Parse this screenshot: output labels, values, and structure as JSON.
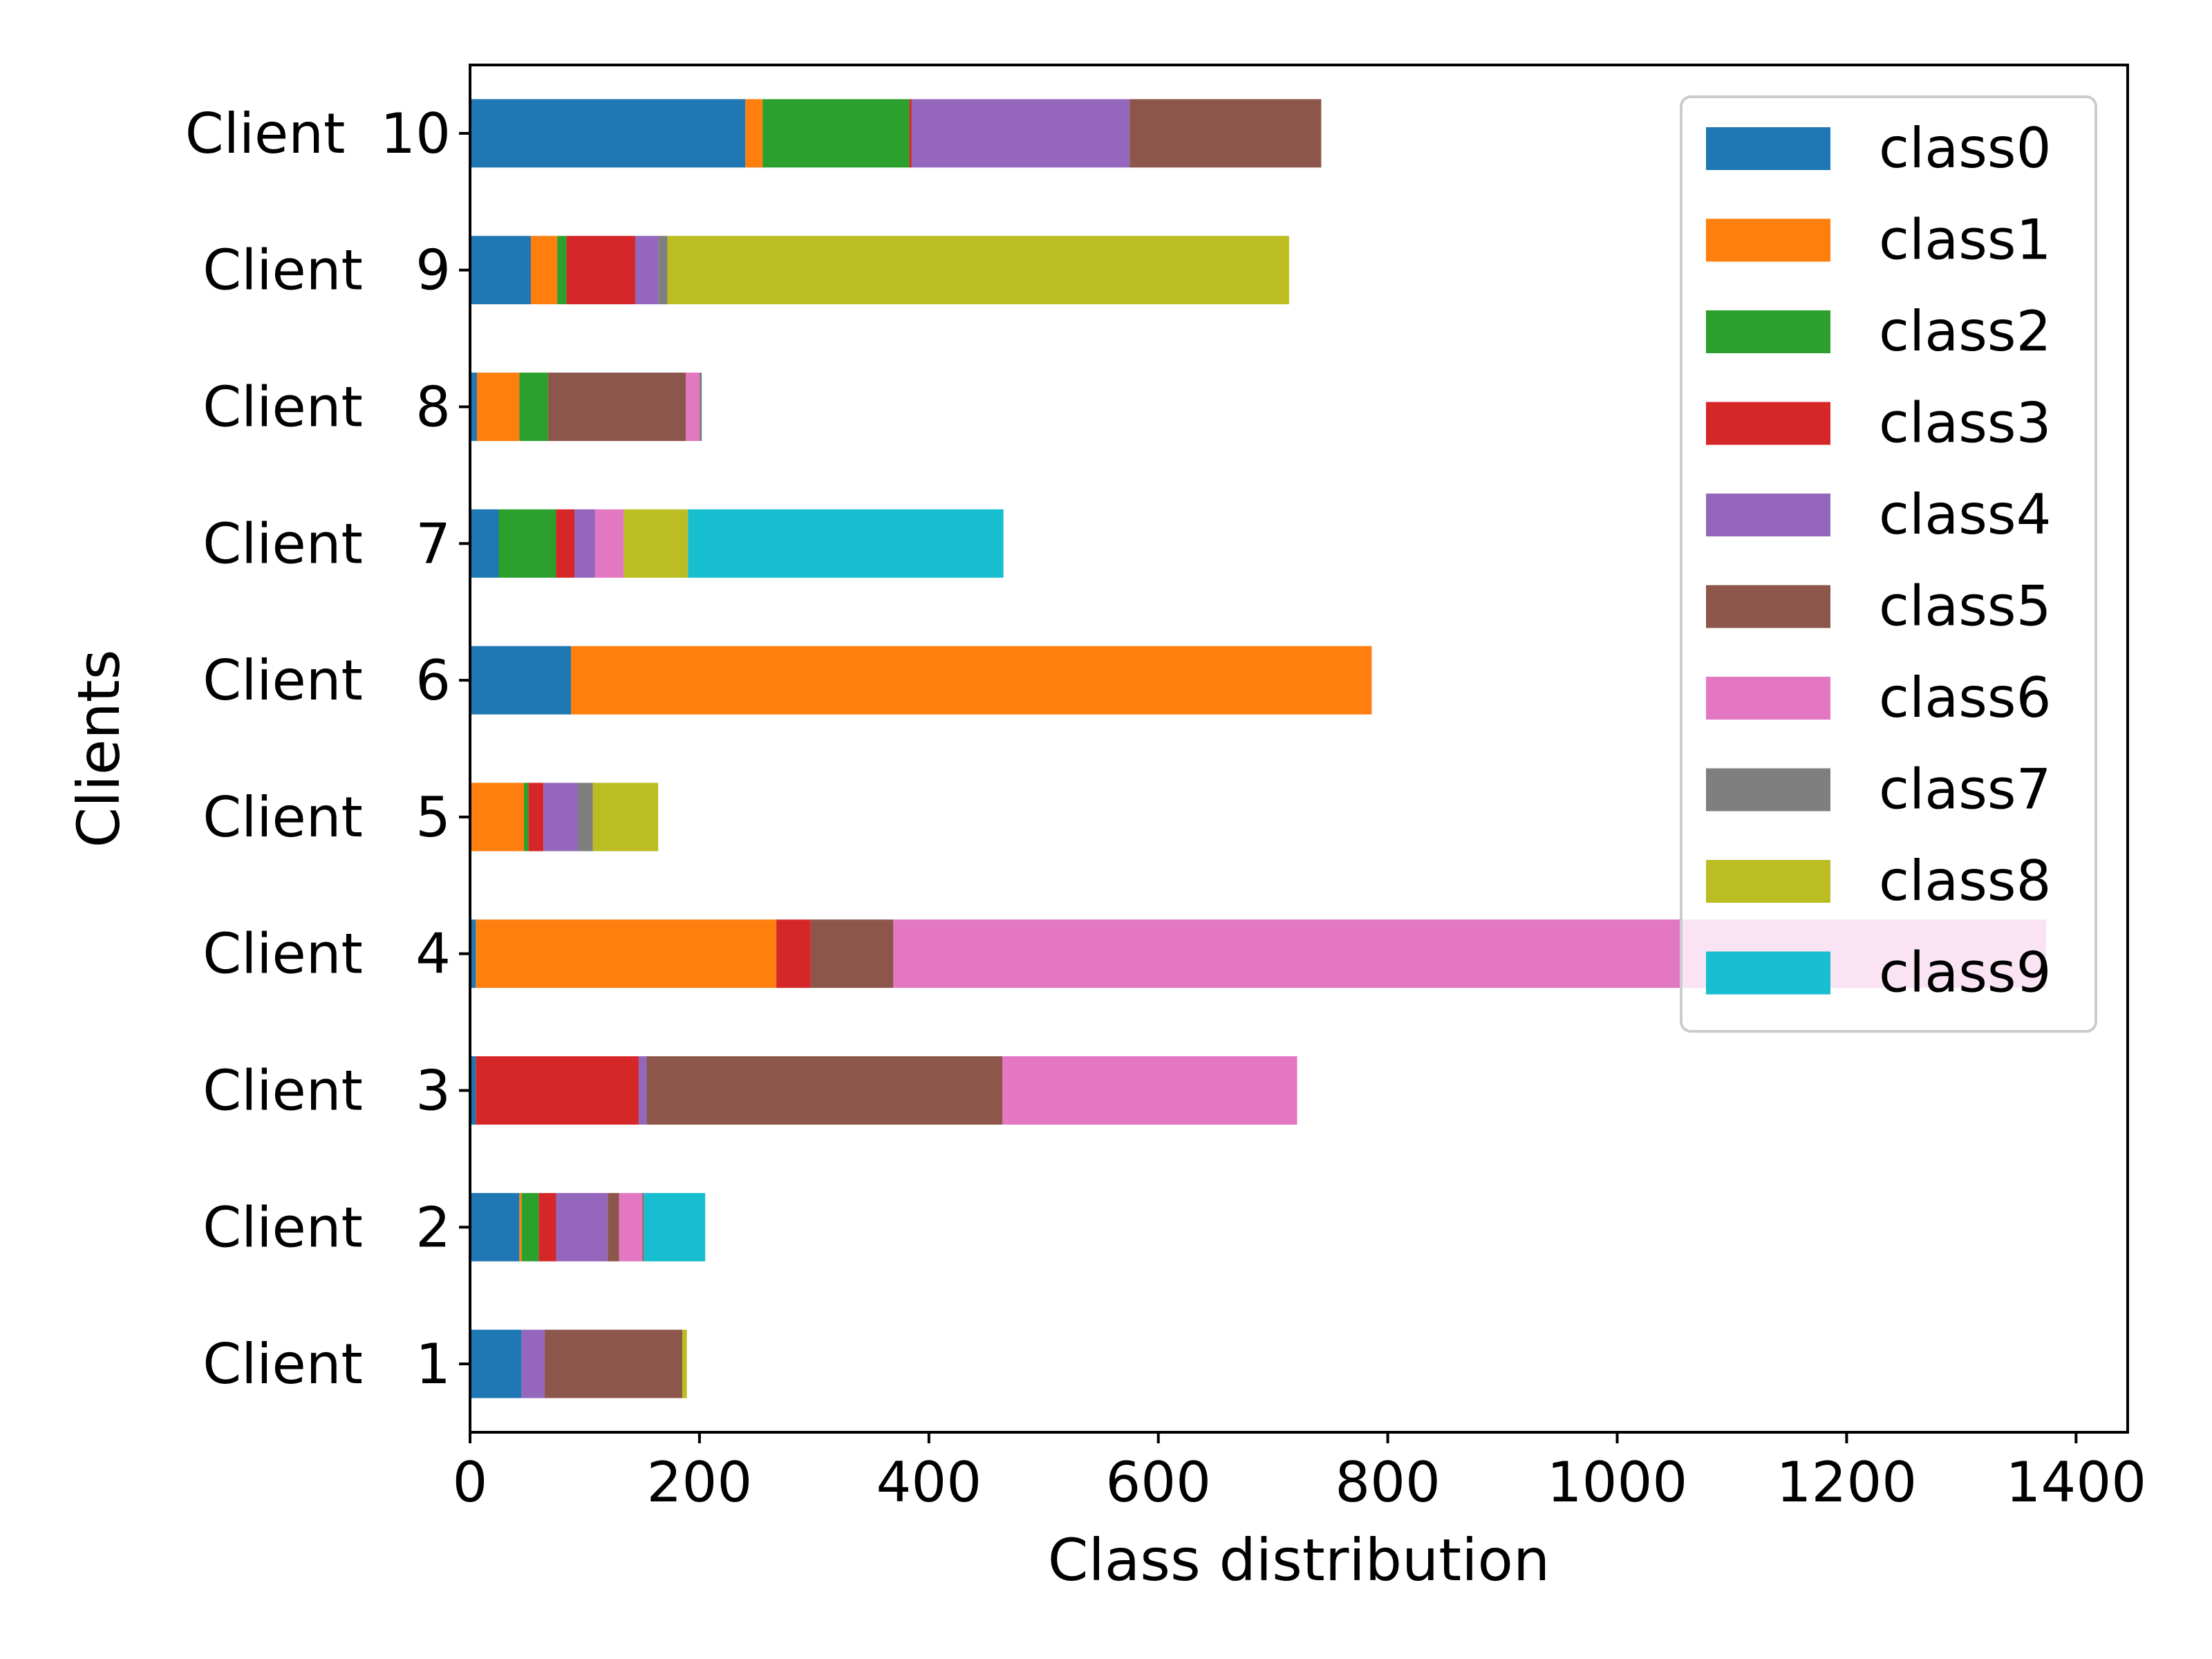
{
  "chart_data": {
    "type": "bar",
    "orientation": "horizontal",
    "stacked": true,
    "xlabel": "Class distribution",
    "ylabel": "Clients",
    "xlim": [
      0,
      1445
    ],
    "xticks": [
      0,
      200,
      400,
      600,
      800,
      1000,
      1200,
      1400
    ],
    "categories": [
      "Client   1",
      "Client   2",
      "Client   3",
      "Client   4",
      "Client   5",
      "Client   6",
      "Client   7",
      "Client   8",
      "Client   9",
      "Client  10"
    ],
    "series": [
      {
        "name": "class0",
        "color": "#1f77b4",
        "values": [
          45,
          43,
          5,
          5,
          0,
          88,
          25,
          6,
          53,
          240
        ]
      },
      {
        "name": "class1",
        "color": "#ff7f0e",
        "values": [
          0,
          2,
          0,
          262,
          47,
          698,
          0,
          37,
          23,
          15
        ]
      },
      {
        "name": "class2",
        "color": "#2ca02c",
        "values": [
          0,
          15,
          0,
          0,
          4,
          0,
          50,
          25,
          8,
          128
        ]
      },
      {
        "name": "class3",
        "color": "#d62728",
        "values": [
          0,
          15,
          142,
          30,
          13,
          0,
          16,
          0,
          60,
          2
        ]
      },
      {
        "name": "class4",
        "color": "#9467bd",
        "values": [
          20,
          45,
          7,
          0,
          30,
          0,
          18,
          0,
          20,
          190
        ]
      },
      {
        "name": "class5",
        "color": "#8c564b",
        "values": [
          120,
          10,
          310,
          72,
          0,
          0,
          0,
          120,
          0,
          167
        ]
      },
      {
        "name": "class6",
        "color": "#e377c2",
        "values": [
          0,
          20,
          257,
          1005,
          0,
          0,
          25,
          12,
          0,
          0
        ]
      },
      {
        "name": "class7",
        "color": "#7f7f7f",
        "values": [
          0,
          2,
          0,
          0,
          13,
          0,
          0,
          2,
          8,
          0
        ]
      },
      {
        "name": "class8",
        "color": "#bcbd22",
        "values": [
          4,
          0,
          0,
          0,
          57,
          0,
          56,
          0,
          542,
          0
        ]
      },
      {
        "name": "class9",
        "color": "#17becf",
        "values": [
          0,
          53,
          0,
          0,
          0,
          0,
          275,
          0,
          0,
          0
        ]
      }
    ],
    "legend_position": "top-right",
    "grid": false
  }
}
